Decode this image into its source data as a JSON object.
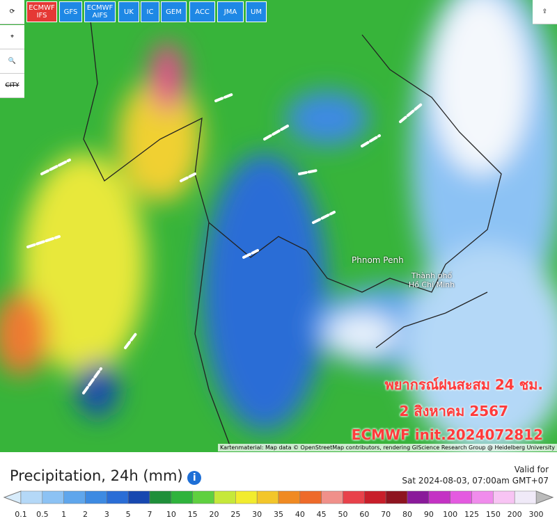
{
  "toolbar": {
    "city": "CITY"
  },
  "models": [
    "ECMWF IFS",
    "GFS",
    "ECMWF AIFS",
    "UK",
    "IC",
    "GEM",
    "ACC",
    "JMA",
    "UM"
  ],
  "map": {
    "places": [
      "Phnom Penh",
      "Thành phố Hồ Chí Minh"
    ],
    "overlay": [
      "พยากรณ์ฝนสะสม 24 ชม.",
      "2 สิงหาคม 2567",
      "ECMWF init.2024072812"
    ],
    "attribution": "Kartenmaterial: Map data © OpenStreetMap contributors, rendering GIScience Research Group @ Heidelberg University"
  },
  "panel": {
    "title": "Precipitation, 24h (mm)",
    "valid_label": "Valid for",
    "valid_time": "Sat 2024-08-03, 07:00am GMT+07"
  },
  "legend": {
    "labels": [
      0.1,
      0.5,
      1,
      2,
      3,
      5,
      7,
      10,
      15,
      20,
      25,
      30,
      35,
      40,
      45,
      50,
      60,
      70,
      80,
      90,
      100,
      125,
      150,
      200,
      300
    ],
    "colors": [
      "#b4d8f7",
      "#8cc2f4",
      "#5fa6ec",
      "#3d8ae2",
      "#2a6dd6",
      "#1748b0",
      "#1f8f3a",
      "#2fb33c",
      "#5fd040",
      "#c6e83a",
      "#f2ec2e",
      "#f3c62a",
      "#f08a22",
      "#ee6a2a",
      "#f0908a",
      "#e8414a",
      "#c81e2a",
      "#8e1420",
      "#8a1a9a",
      "#c432c4",
      "#e45ae0",
      "#f08cec",
      "#f8c4f4",
      "#f0eaf8"
    ]
  }
}
